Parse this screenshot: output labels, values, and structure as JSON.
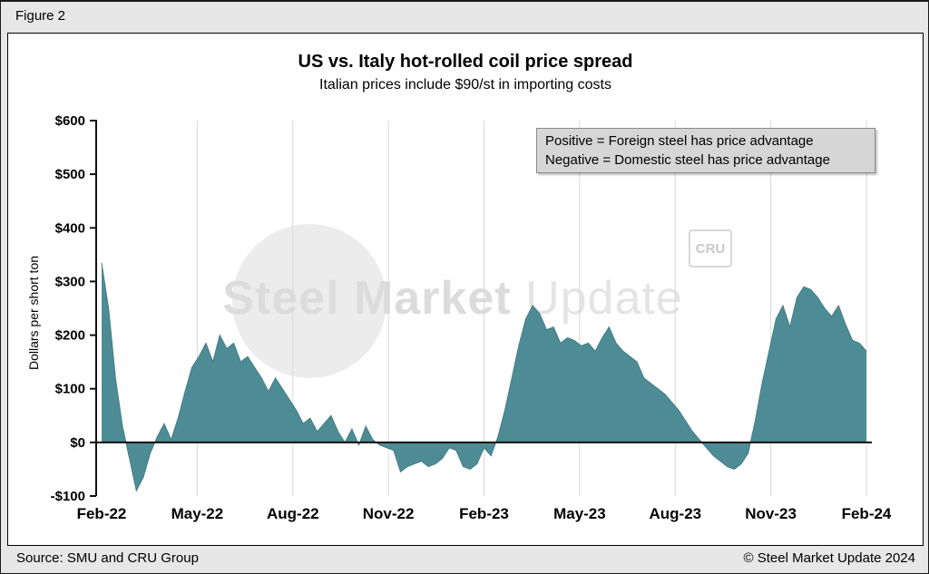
{
  "figure_label": "Figure 2",
  "chart": {
    "title": "US vs. Italy hot-rolled coil price spread",
    "subtitle": "Italian prices include $90/st in importing costs"
  },
  "legend": {
    "line1": "Positive = Foreign steel has price advantage",
    "line2": "Negative = Domestic steel has price advantage"
  },
  "watermark": {
    "text_bold": "Steel Market",
    "text_light": "Update",
    "badge": "CRU"
  },
  "footer": {
    "source": "Source: SMU and CRU Group",
    "copyright": "© Steel Market Update 2024"
  },
  "colors": {
    "area": "#4e8c95",
    "area_edge": "#447d86",
    "grid": "#d9d9d9",
    "axis": "#111111"
  },
  "chart_data": {
    "type": "area",
    "title": "US vs. Italy hot-rolled coil price spread",
    "subtitle": "Italian prices include $90/st in importing costs",
    "ylabel": "Dollars per short ton",
    "xlabel": "",
    "ylim": [
      -100,
      600
    ],
    "ytick_values": [
      600,
      500,
      400,
      300,
      200,
      100,
      0,
      -100
    ],
    "ytick_labels": [
      "$600",
      "$500",
      "$400",
      "$300",
      "$200",
      "$100",
      "$0",
      "-$100"
    ],
    "x_tick_labels": [
      "Feb-22",
      "May-22",
      "Aug-22",
      "Nov-22",
      "Feb-23",
      "May-23",
      "Aug-23",
      "Nov-23",
      "Feb-24"
    ],
    "x_span_months": 24,
    "x_tick_interval_months": 3,
    "grid": "vertical-only",
    "legend_position": "top-right",
    "series_name": "US minus Italy HRC price spread ($/short ton), weekly",
    "values": [
      335,
      250,
      120,
      30,
      -30,
      -90,
      -65,
      -20,
      10,
      35,
      5,
      45,
      95,
      140,
      160,
      185,
      150,
      200,
      175,
      185,
      150,
      160,
      140,
      120,
      95,
      120,
      100,
      80,
      60,
      35,
      45,
      20,
      35,
      50,
      20,
      0,
      25,
      -5,
      30,
      5,
      -5,
      -10,
      -15,
      -55,
      -45,
      -40,
      -35,
      -45,
      -40,
      -30,
      -10,
      -15,
      -45,
      -50,
      -40,
      -10,
      -25,
      10,
      60,
      120,
      180,
      230,
      255,
      240,
      210,
      215,
      185,
      195,
      190,
      180,
      185,
      170,
      195,
      215,
      185,
      170,
      160,
      150,
      120,
      110,
      100,
      90,
      75,
      60,
      40,
      20,
      5,
      -10,
      -25,
      -35,
      -45,
      -50,
      -40,
      -20,
      40,
      110,
      170,
      230,
      255,
      215,
      270,
      290,
      285,
      270,
      250,
      235,
      255,
      220,
      190,
      185,
      170
    ]
  }
}
